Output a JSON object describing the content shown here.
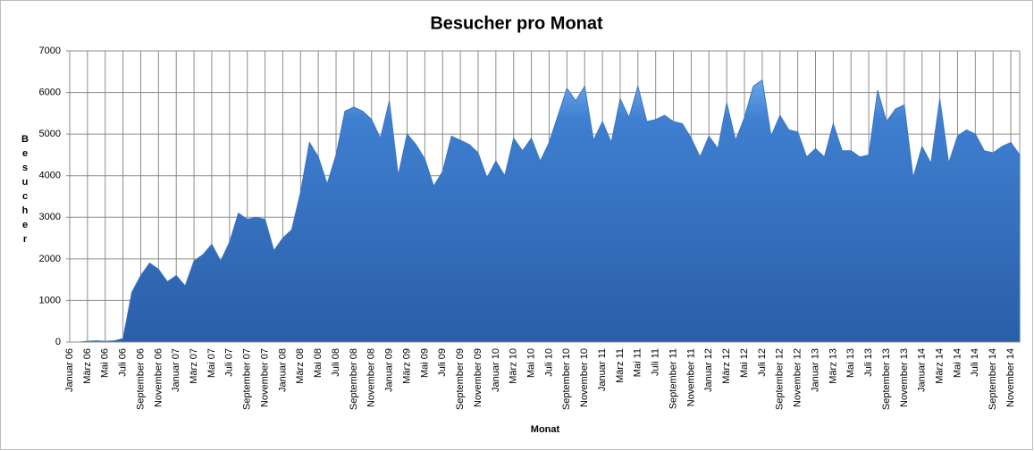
{
  "chart_data": {
    "type": "area",
    "title": "Besucher pro Monat",
    "x_label": "Monat",
    "y_label": "Besucher",
    "color": "#3a75c4",
    "grid": true,
    "ylim": [
      0,
      7000
    ],
    "yticks": [
      0,
      1000,
      2000,
      3000,
      4000,
      5000,
      6000,
      7000
    ],
    "categories": [
      "Januar 06",
      null,
      "März 06",
      null,
      "Mai 06",
      null,
      "Juli 06",
      null,
      "September 06",
      null,
      "November 06",
      null,
      "Januar 07",
      null,
      "März 07",
      null,
      "Mai 07",
      null,
      "Juli 07",
      null,
      "September 07",
      null,
      "November 07",
      null,
      "Januar 08",
      null,
      "März 08",
      null,
      "Mai 08",
      null,
      "Juli 08",
      null,
      "September 08",
      null,
      "November 08",
      null,
      "Januar 09",
      null,
      "März 09",
      null,
      "Mai 09",
      null,
      "Juli 09",
      null,
      "September 09",
      null,
      "November 09",
      null,
      "Januar 10",
      null,
      "März 10",
      null,
      "Mai 10",
      null,
      "Juli 10",
      null,
      "September 10",
      null,
      "November 10",
      null,
      "Januar 11",
      null,
      "März 11",
      null,
      "Mai 11",
      null,
      "Juli 11",
      null,
      "September 11",
      null,
      "November 11",
      null,
      "Januar 12",
      null,
      "März 12",
      null,
      "Mai 12",
      null,
      "Juli 12",
      null,
      "September 12",
      null,
      "November 12",
      null,
      "Januar 13",
      null,
      "März 13",
      null,
      "Mai 13",
      null,
      "Juli 13",
      null,
      "September 13",
      null,
      "November 13",
      null,
      "Januar 14",
      null,
      "März 14",
      null,
      "Mai 14",
      null,
      "Juli 14",
      null,
      "September 14",
      null,
      "November 14",
      null
    ],
    "values": [
      0,
      0,
      20,
      30,
      20,
      30,
      80,
      1200,
      1600,
      1900,
      1750,
      1450,
      1600,
      1350,
      1950,
      2100,
      2350,
      1950,
      2400,
      3100,
      2950,
      3000,
      2950,
      2200,
      2500,
      2700,
      3600,
      4800,
      4450,
      3800,
      4500,
      5550,
      5650,
      5550,
      5350,
      4900,
      5800,
      4000,
      5000,
      4750,
      4400,
      3750,
      4100,
      4950,
      4850,
      4750,
      4550,
      3950,
      4350,
      4000,
      4900,
      4600,
      4900,
      4350,
      4800,
      5450,
      6100,
      5800,
      6150,
      4850,
      5300,
      4800,
      5850,
      5400,
      6150,
      5300,
      5350,
      5450,
      5300,
      5250,
      4900,
      4450,
      4950,
      4650,
      5750,
      4850,
      5400,
      6150,
      6300,
      4950,
      5450,
      5100,
      5050,
      4450,
      4650,
      4450,
      5250,
      4600,
      4600,
      4450,
      4500,
      6050,
      5300,
      5600,
      5700,
      3950,
      4700,
      4300,
      5850,
      4300,
      4950,
      5100,
      5000,
      4600,
      4550,
      4700,
      4800,
      4500
    ]
  }
}
